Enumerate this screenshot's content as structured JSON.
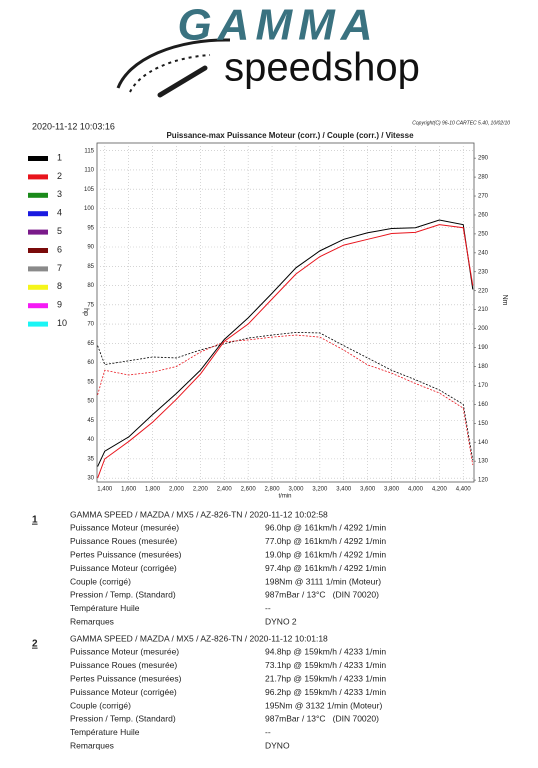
{
  "logo": {
    "brand": "GAMMA",
    "shop": "speedshop"
  },
  "header": {
    "date": "2020-11-12 10:03:16",
    "copyright": "Copyright(C) 96-10 CARTEC 5.40, 10/02/10"
  },
  "chart_data": {
    "type": "line",
    "title": "Puissance-max Puissance Moteur (corr.) / Couple (corr.) / Vitesse",
    "x_label": "t/min",
    "y_label": "hp",
    "y2_label": "Nm",
    "grid": true,
    "x": [
      1340,
      1400,
      1600,
      1800,
      2000,
      2200,
      2400,
      2600,
      2800,
      3000,
      3200,
      3400,
      3600,
      3800,
      4000,
      4200,
      4400,
      4480
    ],
    "xlim": [
      1335,
      4490
    ],
    "xticks": [
      {
        "value": 1400,
        "label": "1,400"
      },
      {
        "value": 1600,
        "label": "1,600"
      },
      {
        "value": 1800,
        "label": "1,800"
      },
      {
        "value": 2000,
        "label": "2,000"
      },
      {
        "value": 2200,
        "label": "2,200"
      },
      {
        "value": 2400,
        "label": "2,400"
      },
      {
        "value": 2600,
        "label": "2,600"
      },
      {
        "value": 2800,
        "label": "2,800"
      },
      {
        "value": 3000,
        "label": "3,000"
      },
      {
        "value": 3200,
        "label": "3,200"
      },
      {
        "value": 3400,
        "label": "3,400"
      },
      {
        "value": 3600,
        "label": "3,600"
      },
      {
        "value": 3800,
        "label": "3,800"
      },
      {
        "value": 4000,
        "label": "4,000"
      },
      {
        "value": 4200,
        "label": "4,200"
      },
      {
        "value": 4400,
        "label": "4,400"
      }
    ],
    "ylim": [
      29,
      117
    ],
    "yticks": [
      30,
      35,
      40,
      45,
      50,
      55,
      60,
      65,
      70,
      75,
      80,
      85,
      90,
      95,
      100,
      105,
      110,
      115
    ],
    "y2lim": [
      119,
      298
    ],
    "y2ticks": [
      120,
      130,
      140,
      150,
      160,
      170,
      180,
      190,
      200,
      210,
      220,
      230,
      240,
      250,
      260,
      270,
      280,
      290
    ],
    "series": [
      {
        "name": "1",
        "color": "#000000",
        "values": [
          33,
          37,
          40.7,
          46.5,
          52,
          58,
          66,
          71.6,
          78,
          84.6,
          89,
          92,
          93.7,
          94.8,
          95,
          97,
          95.8,
          79
        ],
        "torque": [
          191,
          181,
          183,
          185,
          184.5,
          188.7,
          192,
          195,
          196.6,
          198,
          197.7,
          191,
          184.5,
          178,
          173,
          167.6,
          160,
          130.6
        ]
      },
      {
        "name": "2",
        "color": "#e8141c",
        "values": [
          30,
          35,
          39.5,
          44.5,
          50.5,
          57,
          65.5,
          70,
          76.5,
          83,
          87.5,
          90.5,
          92,
          93.5,
          93.8,
          95.8,
          95,
          80
        ],
        "torque": [
          165,
          178,
          175.5,
          177,
          180,
          187.6,
          193,
          194,
          195.5,
          196.6,
          195.5,
          188.7,
          180.8,
          176.5,
          171,
          166,
          158,
          128
        ]
      },
      {
        "name": "3",
        "color": "#1a8a1a"
      },
      {
        "name": "4",
        "color": "#1a1ae0"
      },
      {
        "name": "5",
        "color": "#7a1a8a"
      },
      {
        "name": "6",
        "color": "#7a0a0a"
      },
      {
        "name": "7",
        "color": "#8a8a8a"
      },
      {
        "name": "8",
        "color": "#f5f51a"
      },
      {
        "name": "9",
        "color": "#f51af5"
      },
      {
        "name": "10",
        "color": "#1af5f5"
      }
    ]
  },
  "results": [
    {
      "number": "1",
      "heading": "GAMMA SPEED / MAZDA / MX5 / AZ-826-TN / 2020-11-12 10:02:58",
      "rows": [
        [
          "Puissance Moteur (mesurée)",
          "96.0hp @ 161km/h / 4292 1/min"
        ],
        [
          "Puissance Roues (mesurée)",
          "77.0hp @ 161km/h / 4292 1/min"
        ],
        [
          "Pertes Puissance (mesurées)",
          "19.0hp @ 161km/h / 4292 1/min"
        ],
        [
          "Puissance Moteur (corrigée)",
          "97.4hp @ 161km/h / 4292 1/min"
        ],
        [
          "Couple (corrigé)",
          "198Nm @ 3111 1/min (Moteur)"
        ],
        [
          "Pression / Temp. (Standard)",
          "987mBar / 13°C   (DIN 70020)"
        ],
        [
          "Température Huile",
          "--"
        ],
        [
          "Remarques",
          "DYNO 2"
        ]
      ]
    },
    {
      "number": "2",
      "heading": "GAMMA SPEED / MAZDA / MX5 / AZ-826-TN / 2020-11-12 10:01:18",
      "rows": [
        [
          "Puissance Moteur (mesurée)",
          "94.8hp @ 159km/h / 4233 1/min"
        ],
        [
          "Puissance Roues (mesurée)",
          "73.1hp @ 159km/h / 4233 1/min"
        ],
        [
          "Pertes Puissance (mesurées)",
          "21.7hp @ 159km/h / 4233 1/min"
        ],
        [
          "Puissance Moteur (corrigée)",
          "96.2hp @ 159km/h / 4233 1/min"
        ],
        [
          "Couple (corrigé)",
          "195Nm @ 3132 1/min (Moteur)"
        ],
        [
          "Pression / Temp. (Standard)",
          "987mBar / 13°C   (DIN 70020)"
        ],
        [
          "Température Huile",
          "--"
        ],
        [
          "Remarques",
          "DYNO"
        ]
      ]
    }
  ]
}
